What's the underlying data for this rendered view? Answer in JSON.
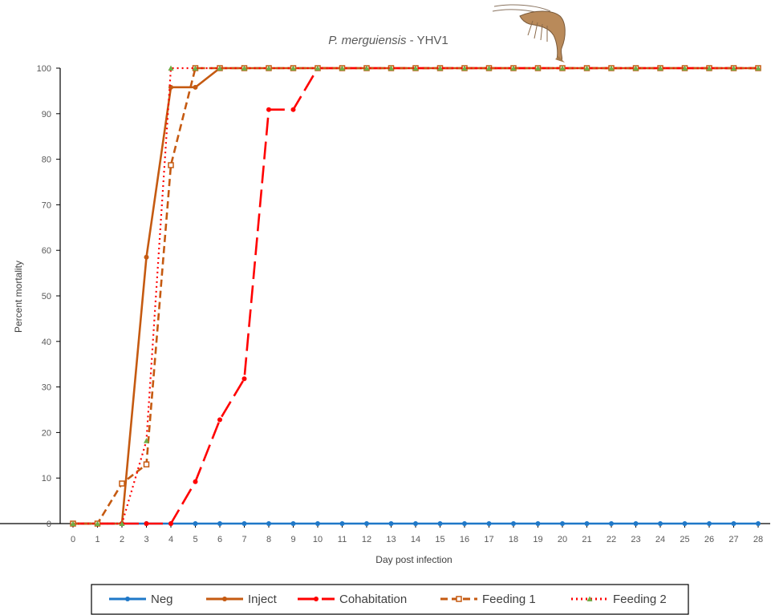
{
  "chart_data": {
    "type": "line",
    "title_italic": "P. merguiensis",
    "title_rest": " - YHV1",
    "xlabel": "Day post infection",
    "ylabel": "Percent mortality",
    "xlim": [
      0,
      28
    ],
    "ylim": [
      0,
      100
    ],
    "x_ticks": [
      0,
      1,
      2,
      3,
      4,
      5,
      6,
      7,
      8,
      9,
      10,
      11,
      12,
      13,
      14,
      15,
      16,
      17,
      18,
      19,
      20,
      21,
      22,
      23,
      24,
      25,
      26,
      27,
      28
    ],
    "y_ticks": [
      0,
      10,
      20,
      30,
      40,
      50,
      60,
      70,
      80,
      90,
      100
    ],
    "grid": false,
    "legend_position": "bottom",
    "series": [
      {
        "name": "Neg",
        "color": "#1f78c8",
        "dash": "solid",
        "marker": "circle",
        "x": [
          0,
          1,
          2,
          3,
          4,
          5,
          6,
          7,
          8,
          9,
          10,
          11,
          12,
          13,
          14,
          15,
          16,
          17,
          18,
          19,
          20,
          21,
          22,
          23,
          24,
          25,
          26,
          27,
          28
        ],
        "values": [
          0,
          0,
          0,
          0,
          0,
          0,
          0,
          0,
          0,
          0,
          0,
          0,
          0,
          0,
          0,
          0,
          0,
          0,
          0,
          0,
          0,
          0,
          0,
          0,
          0,
          0,
          0,
          0,
          0
        ]
      },
      {
        "name": "Inject",
        "color": "#c55a11",
        "dash": "solid",
        "marker": "circle",
        "x": [
          0,
          1,
          2,
          3,
          4,
          5,
          6,
          7,
          8,
          9,
          10,
          11,
          12,
          13,
          14,
          15,
          16,
          17,
          18,
          19,
          20,
          21,
          22,
          23,
          24,
          25,
          26,
          27,
          28
        ],
        "values": [
          0,
          0,
          0,
          58.5,
          95.8,
          95.8,
          100,
          100,
          100,
          100,
          100,
          100,
          100,
          100,
          100,
          100,
          100,
          100,
          100,
          100,
          100,
          100,
          100,
          100,
          100,
          100,
          100,
          100,
          100
        ]
      },
      {
        "name": "Cohabitation",
        "color": "#ff0000",
        "dash": "longdash",
        "marker": "circle",
        "x": [
          0,
          1,
          2,
          3,
          4,
          5,
          6,
          7,
          8,
          9,
          10,
          11,
          12,
          13,
          14,
          15,
          16,
          17,
          18,
          19,
          20,
          21,
          22,
          23,
          24,
          25,
          26,
          27,
          28
        ],
        "values": [
          0,
          0,
          0,
          0,
          0,
          9.2,
          22.8,
          31.8,
          90.9,
          90.9,
          100,
          100,
          100,
          100,
          100,
          100,
          100,
          100,
          100,
          100,
          100,
          100,
          100,
          100,
          100,
          100,
          100,
          100,
          100
        ]
      },
      {
        "name": "Feeding 1",
        "color": "#c55a11",
        "dash": "dash",
        "marker": "square",
        "x": [
          0,
          1,
          2,
          3,
          4,
          5,
          6,
          7,
          8,
          9,
          10,
          11,
          12,
          13,
          14,
          15,
          16,
          17,
          18,
          19,
          20,
          21,
          22,
          23,
          24,
          25,
          26,
          27,
          28
        ],
        "values": [
          0,
          0,
          8.8,
          13,
          78.7,
          100,
          100,
          100,
          100,
          100,
          100,
          100,
          100,
          100,
          100,
          100,
          100,
          100,
          100,
          100,
          100,
          100,
          100,
          100,
          100,
          100,
          100,
          100,
          100
        ]
      },
      {
        "name": "Feeding 2",
        "color": "#ff0000",
        "dash": "dot",
        "marker": "triangle",
        "marker_color": "#70ad47",
        "x": [
          0,
          1,
          2,
          3,
          4,
          5,
          6,
          7,
          8,
          9,
          10,
          11,
          12,
          13,
          14,
          15,
          16,
          17,
          18,
          19,
          20,
          21,
          22,
          23,
          24,
          25,
          26,
          27,
          28
        ],
        "values": [
          0,
          0,
          0,
          18.2,
          100,
          100,
          100,
          100,
          100,
          100,
          100,
          100,
          100,
          100,
          100,
          100,
          100,
          100,
          100,
          100,
          100,
          100,
          100,
          100,
          100,
          100,
          100,
          100,
          100
        ]
      }
    ]
  }
}
